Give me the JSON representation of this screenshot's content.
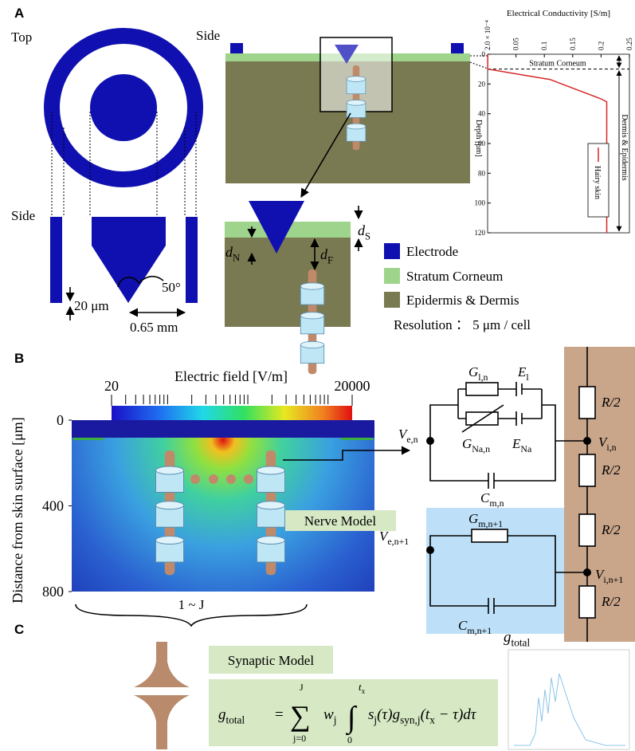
{
  "panel_labels": [
    "A",
    "B",
    "C"
  ],
  "panel_a": {
    "top_label": "Top",
    "side_label_left": "Side",
    "side_label_right": "Side",
    "angle": "50°",
    "gap": "20 μm",
    "distance": "0.65 mm",
    "d_s": [
      "d",
      {
        "sub": "S"
      }
    ],
    "d_n": [
      "d",
      {
        "sub": "N"
      }
    ],
    "d_f": [
      "d",
      {
        "sub": "F"
      }
    ],
    "legend": [
      "Electrode",
      "Stratum Corneum",
      "Epidermis & Dermis"
    ],
    "resolution": "Resolution ： 5 μm / cell",
    "conductivity_chart": {
      "type": "line",
      "title": "Electrical Conductivity [S/m]",
      "y_label": "Depth [μm]",
      "xlim": [
        0,
        0.25
      ],
      "xticks": [
        {
          "value": 0.0002,
          "label": "2.0 × 10⁻⁴"
        },
        0.05,
        0.1,
        0.15,
        0.2,
        0.25
      ],
      "ylim": [
        0,
        120
      ],
      "yticks": [
        0,
        20,
        40,
        60,
        80,
        100,
        120
      ],
      "series": [
        {
          "name": "Hairy skin",
          "color": "#d62728",
          "values": [
            0.0002,
            0.0002,
            0.11,
            0.2,
            0.21,
            0.21
          ],
          "depth": [
            0,
            10,
            17,
            30,
            32,
            120
          ]
        }
      ],
      "boundary_depth": 10,
      "annotations": [
        "Stratum Corneum",
        "Dermis & Epidermis"
      ]
    }
  },
  "panel_b": {
    "colorbar": {
      "title": "Electric field [V/m]",
      "scale": "log",
      "lim": [
        20,
        20000
      ],
      "ticks": [
        20,
        20000
      ]
    },
    "y_label": "Distance from skin surface [μm]",
    "ylim": [
      0,
      800
    ],
    "yticks": [
      0,
      400,
      800
    ],
    "nerve_model": "Nerve Model",
    "range": "1 ~ J",
    "circuit": {
      "g_l": [
        "G",
        {
          "sub": "l,n"
        }
      ],
      "e_l": [
        "E",
        {
          "sub": "l"
        }
      ],
      "g_na": [
        "G",
        {
          "sub": "Na,n"
        }
      ],
      "e_na": [
        "E",
        {
          "sub": "Na"
        }
      ],
      "v_e": [
        "V",
        {
          "sub": "e,n"
        }
      ],
      "v_i": [
        "V",
        {
          "sub": "i,n"
        }
      ],
      "c_m": [
        "C",
        {
          "sub": "m,n"
        }
      ],
      "g_m1": [
        "G",
        {
          "sub": "m,n+1"
        }
      ],
      "v_e1": [
        "V",
        {
          "sub": "e,n+1"
        }
      ],
      "v_i1": [
        "V",
        {
          "sub": "i,n+1"
        }
      ],
      "c_m1": [
        "C",
        {
          "sub": "m,n+1"
        }
      ],
      "resistors": [
        "R/2",
        "R/2",
        "R/2",
        "R/2"
      ]
    }
  },
  "panel_c": {
    "synaptic_model": "Synaptic Model",
    "plot_label": [
      "g",
      {
        "sub": "total"
      }
    ],
    "formula": {
      "lhs": [
        "g",
        {
          "sub": "total"
        }
      ],
      "equals": "=",
      "sum": "∑",
      "sum_upper": "J",
      "sum_lower": "j=0",
      "weight": [
        "w",
        {
          "sub": "j"
        }
      ],
      "integral": "∫",
      "int_upper": [
        "t",
        {
          "sub": "x"
        }
      ],
      "int_lower": "0",
      "integrand": [
        "s",
        {
          "sub": "j"
        },
        "(τ)g",
        {
          "sub": "syn,j"
        },
        "(t",
        {
          "sub": "x"
        },
        " − τ)dτ"
      ]
    }
  }
}
